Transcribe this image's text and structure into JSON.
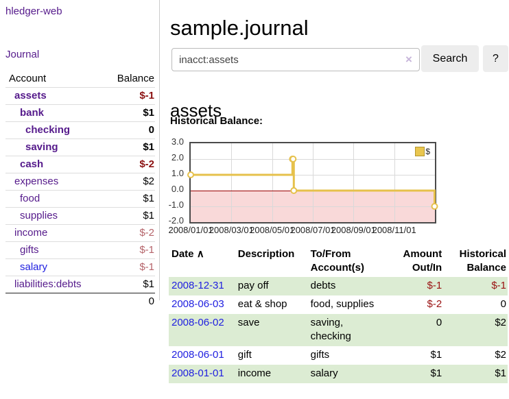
{
  "sidebar": {
    "brand": "hledger-web",
    "journal_link": "Journal",
    "accounts_table": {
      "headers": {
        "account": "Account",
        "balance": "Balance"
      },
      "rows": [
        {
          "name": "assets",
          "balance": "$-1",
          "depth": 1,
          "bold": true
        },
        {
          "name": "bank",
          "balance": "$1",
          "depth": 2,
          "bold": true
        },
        {
          "name": "checking",
          "balance": "0",
          "depth": 3,
          "bold": true
        },
        {
          "name": "saving",
          "balance": "$1",
          "depth": 3,
          "bold": true
        },
        {
          "name": "cash",
          "balance": "$-2",
          "depth": 2,
          "bold": true
        },
        {
          "name": "expenses",
          "balance": "$2",
          "depth": 1,
          "bold": false
        },
        {
          "name": "food",
          "balance": "$1",
          "depth": 2,
          "bold": false
        },
        {
          "name": "supplies",
          "balance": "$1",
          "depth": 2,
          "bold": false
        },
        {
          "name": "income",
          "balance": "$-2",
          "depth": 1,
          "bold": false
        },
        {
          "name": "gifts",
          "balance": "$-1",
          "depth": 2,
          "bold": false
        },
        {
          "name": "salary",
          "balance": "$-1",
          "depth": 2,
          "bold": false,
          "blue": true
        },
        {
          "name": "liabilities:debts",
          "balance": "$1",
          "depth": 1,
          "bold": false
        }
      ],
      "total": "0"
    }
  },
  "header": {
    "title": "sample.journal"
  },
  "search": {
    "query": "inacct:assets",
    "clear_icon": "×",
    "button_label": "Search",
    "help_label": "?"
  },
  "account_page": {
    "heading": "assets",
    "chart_label": "Historical Balance:"
  },
  "chart_data": {
    "type": "line",
    "step": true,
    "title": "Historical Balance",
    "legend": "$",
    "legend_position": "top-right",
    "series": [
      {
        "name": "$",
        "color": "#e6c14b",
        "points": [
          [
            "2008-01-01",
            1
          ],
          [
            "2008-06-01",
            2
          ],
          [
            "2008-06-02",
            2
          ],
          [
            "2008-06-03",
            0
          ],
          [
            "2008-12-31",
            -1
          ]
        ]
      }
    ],
    "yticks": [
      3.0,
      2.0,
      1.0,
      0.0,
      -1.0,
      -2.0
    ],
    "ylim": [
      -2.0,
      3.0
    ],
    "xticks": [
      "2008/01/01",
      "2008/03/01",
      "2008/05/01",
      "2008/07/01",
      "2008/09/01",
      "2008/11/01"
    ],
    "xlim": [
      "2008/01/01",
      "2009/01/01"
    ],
    "grid": true,
    "zero_line_color": "#990000",
    "negative_region_color": "#f9d9d9"
  },
  "register": {
    "columns": [
      "Date",
      "Description",
      "To/From Account(s)",
      "Amount Out/In",
      "Historical Balance"
    ],
    "sort_icon": "∧",
    "rows": [
      {
        "date": "2008-12-31",
        "description": "pay off",
        "accounts": "debts",
        "amount": "$-1",
        "balance": "$-1"
      },
      {
        "date": "2008-06-03",
        "description": "eat & shop",
        "accounts": "food, supplies",
        "amount": "$-2",
        "balance": "0"
      },
      {
        "date": "2008-06-02",
        "description": "save",
        "accounts": "saving,\nchecking",
        "amount": "0",
        "balance": "$2"
      },
      {
        "date": "2008-06-01",
        "description": "gift",
        "accounts": "gifts",
        "amount": "$1",
        "balance": "$2"
      },
      {
        "date": "2008-01-01",
        "description": "income",
        "accounts": "salary",
        "amount": "$1",
        "balance": "$1"
      }
    ]
  }
}
